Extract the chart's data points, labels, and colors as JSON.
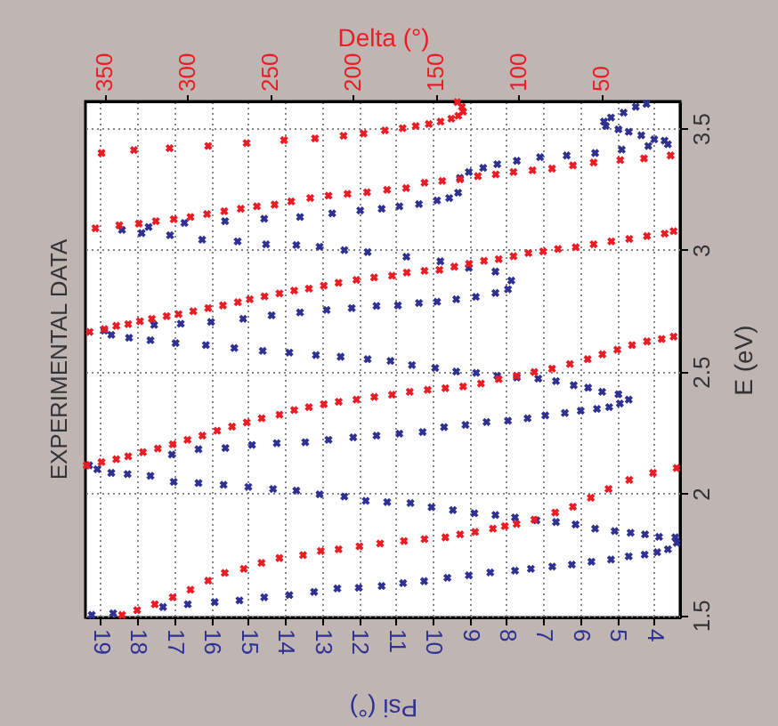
{
  "chart_data": {
    "type": "scatter",
    "title": "EXPERIMENTAL DATA",
    "xlabel": "Psi (°)",
    "x2label": "Delta (°)",
    "ylabel": "E (eV)",
    "xlim": [
      19.4,
      3.3
    ],
    "xticks": [
      4,
      5,
      6,
      7,
      8,
      9,
      10,
      11,
      12,
      13,
      14,
      15,
      16,
      17,
      18,
      19
    ],
    "x2lim": [
      361.4,
      2.4
    ],
    "x2ticks": [
      50,
      100,
      150,
      200,
      250,
      300,
      350
    ],
    "ylim": [
      1.49,
      3.61
    ],
    "yticks": [
      1.5,
      2,
      2.5,
      3,
      3.5
    ],
    "grid": true,
    "marker": "cross",
    "series": [
      {
        "color": "#2e3192",
        "values": [
          1.5,
          1.507,
          1.533,
          1.544,
          1.553,
          1.56,
          1.573,
          1.582,
          1.595,
          1.609,
          1.612,
          1.619,
          1.631,
          1.639,
          1.653,
          1.663,
          1.675,
          1.682,
          1.69,
          1.699,
          1.707,
          1.719,
          1.728,
          1.741,
          1.748,
          1.758,
          1.77,
          1.797,
          1.819,
          1.821,
          1.831,
          1.838,
          1.845,
          1.855,
          1.872,
          1.882,
          1.889,
          1.901,
          1.911,
          1.918,
          1.931,
          1.943,
          1.96,
          1.964,
          1.969,
          1.987,
          1.996,
          2.011,
          2.018,
          2.026,
          2.035,
          2.042,
          2.047,
          2.072,
          2.079,
          2.084,
          2.099,
          2.115,
          2.159,
          2.181,
          2.186,
          2.199,
          2.206,
          2.21,
          2.22,
          2.23,
          2.237,
          2.245,
          2.252,
          2.272,
          2.281,
          2.293,
          2.298,
          2.308,
          2.32,
          2.33,
          2.339,
          2.347,
          2.354,
          2.369,
          2.385,
          2.407,
          2.417,
          2.434,
          2.444,
          2.461,
          2.471,
          2.476,
          2.483,
          2.495,
          2.5,
          2.515,
          2.527,
          2.544,
          2.551,
          2.561,
          2.568,
          2.578,
          2.585,
          2.597,
          2.609,
          2.617,
          2.629,
          2.639,
          2.651,
          2.668,
          2.692,
          2.697,
          2.704,
          2.717,
          2.731,
          2.743,
          2.753,
          2.761,
          2.77,
          2.772,
          2.782,
          2.787,
          2.797,
          2.807,
          2.823,
          2.838,
          2.874,
          2.911,
          2.926,
          2.953,
          2.972,
          2.991,
          2.999,
          3.013,
          3.02,
          3.023,
          3.035,
          3.042,
          3.06,
          3.069,
          3.082,
          3.094,
          3.111,
          3.118,
          3.128,
          3.135,
          3.15,
          3.162,
          3.169,
          3.179,
          3.188,
          3.203,
          3.213,
          3.235,
          3.296,
          3.32,
          3.337,
          3.352,
          3.366,
          3.381,
          3.388,
          3.398,
          3.412,
          3.427,
          3.434,
          3.449,
          3.454,
          3.471,
          3.485,
          3.495,
          3.509,
          3.527,
          3.544,
          3.564,
          3.588,
          3.6
        ],
        "x": [
          19.23,
          18.65,
          17.3,
          16.63,
          15.9,
          15.23,
          14.56,
          13.88,
          13.21,
          12.58,
          12.0,
          11.38,
          10.8,
          10.23,
          9.6,
          9.02,
          8.44,
          7.77,
          7.34,
          6.76,
          6.23,
          5.7,
          5.17,
          4.69,
          4.26,
          3.92,
          3.63,
          3.39,
          3.43,
          3.87,
          4.25,
          4.64,
          5.07,
          5.6,
          6.13,
          6.66,
          7.19,
          7.77,
          8.3,
          8.87,
          9.45,
          10.03,
          10.6,
          11.23,
          11.81,
          12.39,
          13.06,
          13.69,
          14.32,
          14.99,
          15.66,
          16.34,
          17.01,
          17.64,
          18.26,
          18.7,
          19.08,
          19.3,
          17.06,
          16.34,
          15.61,
          14.89,
          14.22,
          13.45,
          12.82,
          12.15,
          11.52,
          10.9,
          10.27,
          9.69,
          9.11,
          8.54,
          7.96,
          7.43,
          6.95,
          6.42,
          5.99,
          5.55,
          5.22,
          4.93,
          4.69,
          4.97,
          5.41,
          5.79,
          6.18,
          6.66,
          7.14,
          7.72,
          8.25,
          8.82,
          9.36,
          9.93,
          10.56,
          11.14,
          11.76,
          12.49,
          13.16,
          13.88,
          14.6,
          15.37,
          16.14,
          16.96,
          17.64,
          18.22,
          18.7,
          18.89,
          17.54,
          16.82,
          16.0,
          15.13,
          14.36,
          13.59,
          12.87,
          12.19,
          11.52,
          10.94,
          10.37,
          9.88,
          9.36,
          8.83,
          8.3,
          7.96,
          7.87,
          8.3,
          9.02,
          9.79,
          10.71,
          11.76,
          12.39,
          13.06,
          13.69,
          14.51,
          15.28,
          16.24,
          17.11,
          17.88,
          18.41,
          17.69,
          16.72,
          15.62,
          14.56,
          13.59,
          12.72,
          11.96,
          11.38,
          10.9,
          10.37,
          9.88,
          9.55,
          9.31,
          9.26,
          9.02,
          8.63,
          8.25,
          7.72,
          7.09,
          6.37,
          5.6,
          4.88,
          4.16,
          3.63,
          3.72,
          4.0,
          4.35,
          4.69,
          4.97,
          5.31,
          5.36,
          5.17,
          4.83,
          4.5,
          4.21
        ]
      },
      {
        "color": "#ed1c24",
        "axis": "x2",
        "values": [
          1.5,
          1.52,
          1.544,
          1.573,
          1.604,
          1.641,
          1.673,
          1.69,
          1.714,
          1.734,
          1.746,
          1.763,
          1.77,
          1.782,
          1.794,
          1.804,
          1.812,
          1.819,
          1.831,
          1.841,
          1.855,
          1.865,
          1.874,
          1.892,
          1.921,
          1.945,
          1.982,
          2.018,
          2.055,
          2.084,
          2.104,
          2.115,
          2.128,
          2.14,
          2.152,
          2.169,
          2.184,
          2.201,
          2.22,
          2.237,
          2.257,
          2.274,
          2.291,
          2.308,
          2.323,
          2.342,
          2.354,
          2.366,
          2.376,
          2.385,
          2.396,
          2.405,
          2.417,
          2.425,
          2.432,
          2.439,
          2.451,
          2.469,
          2.483,
          2.498,
          2.512,
          2.531,
          2.551,
          2.571,
          2.59,
          2.609,
          2.624,
          2.634,
          2.644,
          2.663,
          2.675,
          2.688,
          2.695,
          2.707,
          2.717,
          2.728,
          2.736,
          2.748,
          2.761,
          2.772,
          2.785,
          2.797,
          2.809,
          2.821,
          2.833,
          2.841,
          2.853,
          2.865,
          2.877,
          2.887,
          2.894,
          2.907,
          2.914,
          2.918,
          2.931,
          2.943,
          2.955,
          2.962,
          2.974,
          2.987,
          2.994,
          3.004,
          3.011,
          3.023,
          3.035,
          3.045,
          3.057,
          3.067,
          3.077,
          3.089,
          3.101,
          3.108,
          3.118,
          3.126,
          3.135,
          3.147,
          3.159,
          3.169,
          3.179,
          3.186,
          3.199,
          3.213,
          3.223,
          3.23,
          3.237,
          3.247,
          3.254,
          3.276,
          3.283,
          3.29,
          3.303,
          3.31,
          3.32,
          3.327,
          3.334,
          3.347,
          3.359,
          3.369,
          3.376,
          3.388,
          3.398,
          3.41,
          3.418,
          3.427,
          3.439,
          3.451,
          3.458,
          3.469,
          3.478,
          3.491,
          3.5,
          3.509,
          3.517,
          3.527,
          3.539,
          3.551,
          3.568,
          3.588,
          3.607
        ],
        "x": [
          339.3,
          330.2,
          319.5,
          308.7,
          298.0,
          287.3,
          277.3,
          265.8,
          255.1,
          244.3,
          230.0,
          219.3,
          208.6,
          196.0,
          183.5,
          169.1,
          156.7,
          144.1,
          135.2,
          126.2,
          115.4,
          108.2,
          101.1,
          90.4,
          77.8,
          67.1,
          56.3,
          45.6,
          33.1,
          18.7,
          4.5,
          360.7,
          351.7,
          342.8,
          335.6,
          326.7,
          317.7,
          308.7,
          299.8,
          290.8,
          281.9,
          272.9,
          264.0,
          255.0,
          244.3,
          235.4,
          226.5,
          217.5,
          208.5,
          197.8,
          187.0,
          176.3,
          165.6,
          154.8,
          144.1,
          133.4,
          122.6,
          111.9,
          101.1,
          90.4,
          79.7,
          68.9,
          58.2,
          49.3,
          40.3,
          31.4,
          22.4,
          13.5,
          6.3,
          358.9,
          350.0,
          342.8,
          335.6,
          328.5,
          321.3,
          312.4,
          305.2,
          296.3,
          287.3,
          278.4,
          269.4,
          262.2,
          253.3,
          244.3,
          235.4,
          226.5,
          217.5,
          208.6,
          197.8,
          187.1,
          176.3,
          167.4,
          156.7,
          147.7,
          138.7,
          129.8,
          120.8,
          111.9,
          103.0,
          94.0,
          85.1,
          76.1,
          65.4,
          54.6,
          43.9,
          33.1,
          22.4,
          11.7,
          6.3,
          355.4,
          341.0,
          329.2,
          318.9,
          308.1,
          298.0,
          288.0,
          277.6,
          267.6,
          257.9,
          247.2,
          237.2,
          225.7,
          214.7,
          203.2,
          191.4,
          179.3,
          167.8,
          156.7,
          146.0,
          135.2,
          124.5,
          113.7,
          103.0,
          91.5,
          79.7,
          67.1,
          54.6,
          38.5,
          24.2,
          8.1,
          351.7,
          332.1,
          310.6,
          287.3,
          264.1,
          241.5,
          222.8,
          205.6,
          193.5,
          180.6,
          169.9,
          162.0,
          154.1,
          147.0,
          140.5,
          136.3,
          133.4,
          134.1,
          136.9
        ]
      }
    ]
  }
}
